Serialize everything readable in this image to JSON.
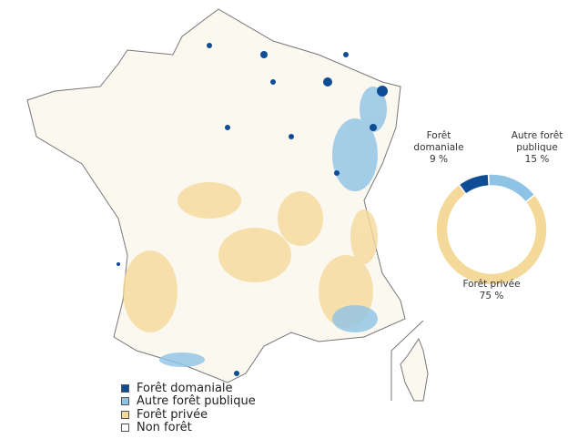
{
  "map": {
    "legend": [
      {
        "label": "Forêt domaniale",
        "color": "#0f4c96"
      },
      {
        "label": "Autre forêt publique",
        "color": "#8ec3e6"
      },
      {
        "label": "Forêt privée",
        "color": "#f5d99a"
      },
      {
        "label": "Non forêt",
        "color": "#ffffff"
      }
    ]
  },
  "chart_data": {
    "type": "pie",
    "donut": true,
    "categories": [
      "Forêt domaniale",
      "Autre forêt publique",
      "Forêt privée"
    ],
    "values": [
      9,
      15,
      75
    ],
    "value_labels": [
      "9 %",
      "15 %",
      "75 %"
    ],
    "colors": [
      "#0f4c96",
      "#8ec3e6",
      "#f5d99a"
    ]
  }
}
